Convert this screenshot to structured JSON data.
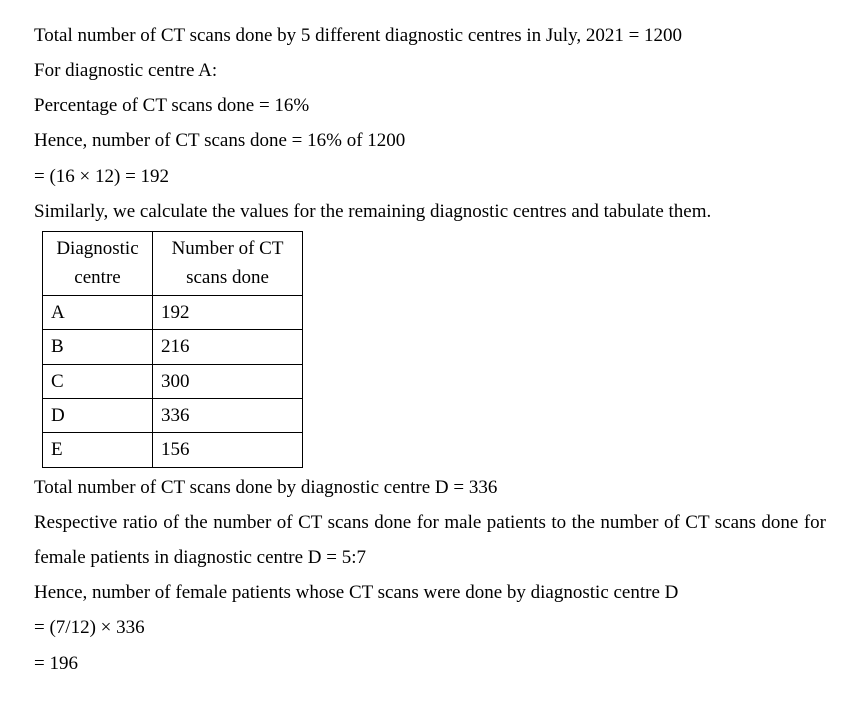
{
  "lines": {
    "l1": "Total number of CT scans done by 5 different diagnostic centres in July, 2021 = 1200",
    "l2": "For diagnostic centre A:",
    "l3": "Percentage of CT scans done = 16%",
    "l4": "Hence, number of CT scans done = 16% of 1200",
    "l5": "= (16 × 12) = 192",
    "l6": "Similarly, we calculate the values for the remaining diagnostic centres and tabulate them.",
    "l7": "Total number of CT scans done by diagnostic centre D = 336",
    "l8": "Respective ratio of the number of CT scans done for male patients to the number of CT scans done for female patients in diagnostic centre D = 5:7",
    "l9": "Hence, number of female patients whose CT scans were done by diagnostic centre D",
    "l10": "= (7/12) × 336",
    "l11": "= 196"
  },
  "table": {
    "header": {
      "col1": "Diagnostic centre",
      "col2": "Number of CT scans done"
    },
    "rows": [
      {
        "centre": "A",
        "scans": "192"
      },
      {
        "centre": "B",
        "scans": "216"
      },
      {
        "centre": "C",
        "scans": "300"
      },
      {
        "centre": "D",
        "scans": "336"
      },
      {
        "centre": "E",
        "scans": "156"
      }
    ]
  },
  "style": {
    "background_color": "#ffffff",
    "text_color": "#000000",
    "font_family": "Times New Roman",
    "font_size_pt": 14,
    "border_color": "#000000"
  }
}
